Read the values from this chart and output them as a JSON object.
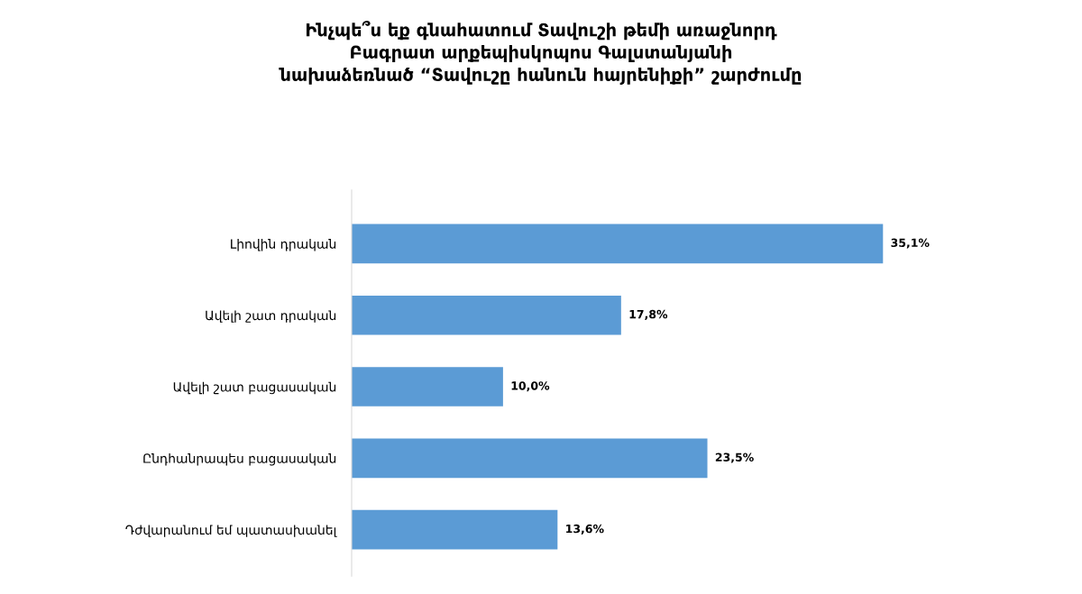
{
  "chart_data": {
    "type": "bar",
    "orientation": "horizontal",
    "title": "Ինչպե՞ս եք գնահատում Տավուշի թեմի առաջնորդ\nԲագրատ արքեպիսկոպոս Գալստանյանի\nնախաձեռնած “Տավուշը հանուն հայրենիքի” շարժումը",
    "categories": [
      "Լիովին դրական",
      "Ավելի շատ դրական",
      "Ավելի շատ բացասական",
      "Ընդհանրապես բացասական",
      "Դժվարանում եմ պատասխանել"
    ],
    "values": [
      35.1,
      17.8,
      10.0,
      23.5,
      13.6
    ],
    "value_labels": [
      "35,1%",
      "17,8%",
      "10,0%",
      "23,5%",
      "13,6%"
    ],
    "color": "#5b9bd5",
    "grid": false,
    "legend": false
  }
}
